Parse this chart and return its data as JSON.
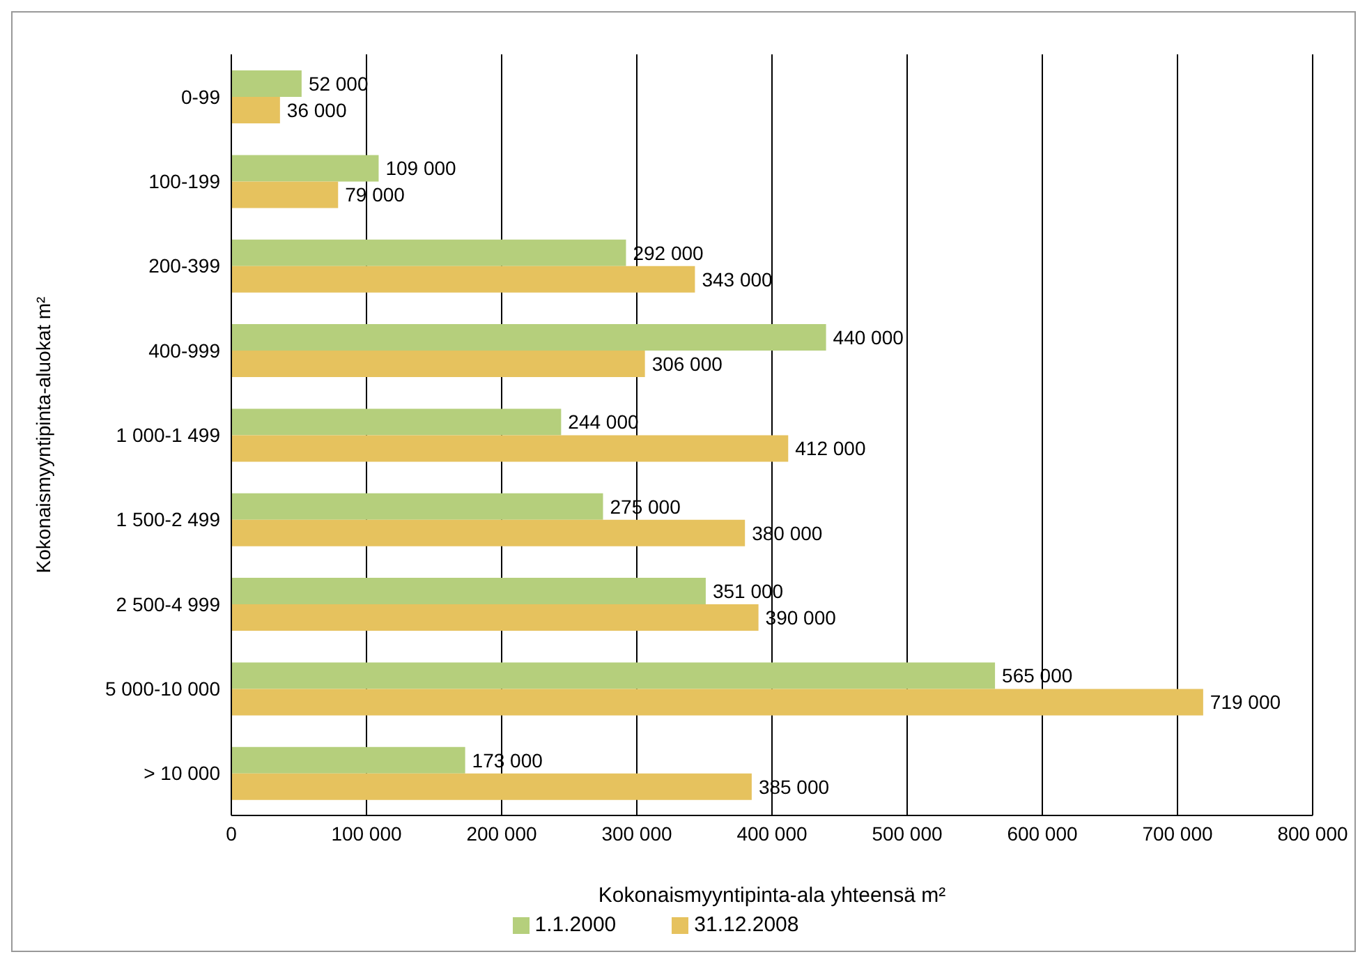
{
  "chart_data": {
    "type": "bar",
    "orientation": "horizontal",
    "xlabel": "Kokonaismyyntipinta-ala yhteensä m²",
    "ylabel": "Kokonaismyyntipinta-aluokat m²",
    "categories": [
      "0-99",
      "100-199",
      "200-399",
      "400-999",
      "1 000-1 499",
      "1 500-2 499",
      "2 500-4 999",
      "5 000-10 000",
      "> 10 000"
    ],
    "series": [
      {
        "name": "1.1.2000",
        "color": "#b5cf7c",
        "values": [
          52000,
          109000,
          292000,
          440000,
          244000,
          275000,
          351000,
          565000,
          173000
        ],
        "value_labels": [
          "52 000",
          "109 000",
          "292 000",
          "440 000",
          "244 000",
          "275 000",
          "351 000",
          "565 000",
          "173 000"
        ]
      },
      {
        "name": "31.12.2008",
        "color": "#e6c25e",
        "values": [
          36000,
          79000,
          343000,
          306000,
          412000,
          380000,
          390000,
          719000,
          385000
        ],
        "value_labels": [
          "36 000",
          "79 000",
          "343 000",
          "306 000",
          "412 000",
          "380 000",
          "390 000",
          "719 000",
          "385 000"
        ]
      }
    ],
    "xlim": [
      0,
      800000
    ],
    "xticks": [
      {
        "value": 0,
        "label": "0"
      },
      {
        "value": 100000,
        "label": "100 000"
      },
      {
        "value": 200000,
        "label": "200 000"
      },
      {
        "value": 300000,
        "label": "300 000"
      },
      {
        "value": 400000,
        "label": "400 000"
      },
      {
        "value": 500000,
        "label": "500 000"
      },
      {
        "value": 600000,
        "label": "600 000"
      },
      {
        "value": 700000,
        "label": "700 000"
      },
      {
        "value": 800000,
        "label": "800 000"
      }
    ],
    "grid": "x",
    "legend": "bottom"
  }
}
